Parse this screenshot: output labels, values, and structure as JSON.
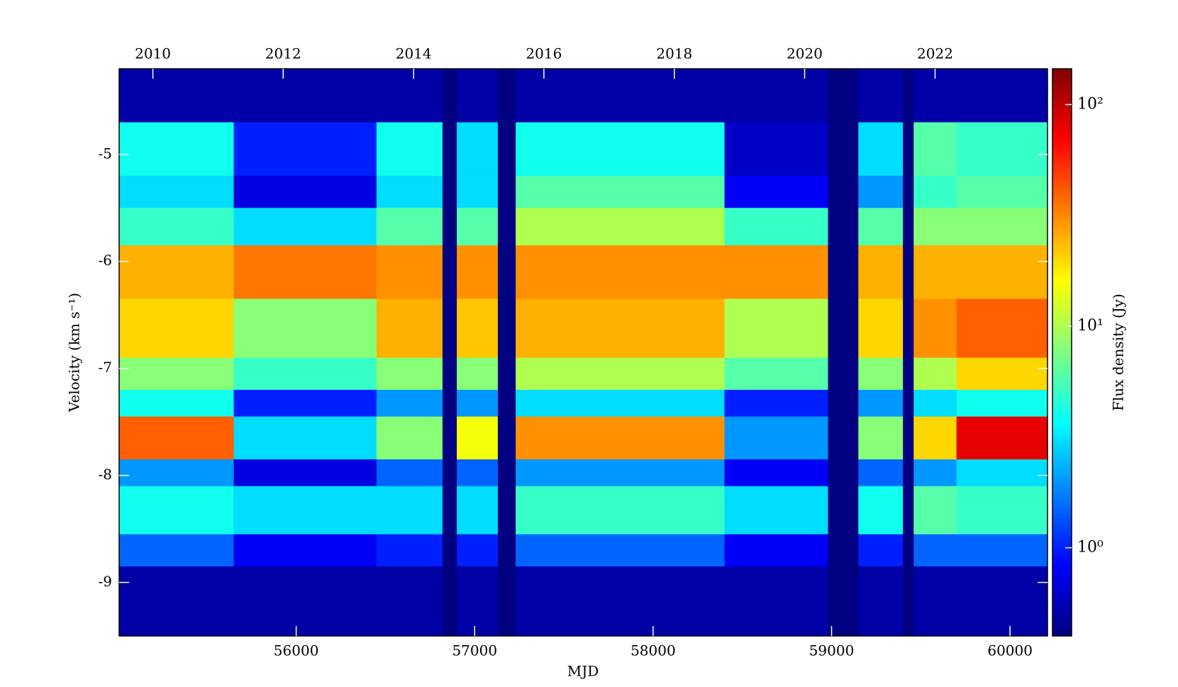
{
  "chart_data": {
    "type": "heatmap",
    "xlabel": "MJD",
    "ylabel": "Velocity (km s⁻¹)",
    "colorbar_label": "Flux density (Jy)",
    "colormap": "jet",
    "color_log": true,
    "x_bins": [
      55008,
      55650,
      56450,
      56820,
      56900,
      57130,
      57230,
      58400,
      58980,
      59150,
      59400,
      59460,
      59700,
      60210
    ],
    "y_bins": [
      -4.2,
      -4.7,
      -5.2,
      -5.5,
      -5.85,
      -6.35,
      -6.9,
      -7.2,
      -7.45,
      -7.85,
      -8.1,
      -8.55,
      -8.85,
      -9.5
    ],
    "values": [
      [
        0.5,
        4,
        3,
        5,
        25,
        20,
        8,
        4,
        40,
        2,
        4,
        1.5,
        0.5
      ],
      [
        0.5,
        1,
        0.7,
        3,
        35,
        8,
        5,
        1,
        3,
        0.7,
        3,
        0.8,
        0.5
      ],
      [
        0.5,
        4,
        3,
        6,
        30,
        25,
        8,
        2,
        8,
        1.5,
        3,
        1,
        0.5
      ],
      [
        0.4,
        0.4,
        0.4,
        0.4,
        0.4,
        0.4,
        0.4,
        0.4,
        0.4,
        0.4,
        0.4,
        0.4,
        0.4
      ],
      [
        0.5,
        3,
        3,
        6,
        30,
        22,
        8,
        2,
        15,
        1.5,
        3,
        1,
        0.5
      ],
      [
        0.4,
        0.4,
        0.4,
        0.4,
        0.4,
        0.4,
        0.4,
        0.4,
        0.4,
        0.4,
        0.4,
        0.4,
        0.4
      ],
      [
        0.5,
        4,
        6,
        10,
        30,
        25,
        10,
        3,
        30,
        2,
        5,
        1.5,
        0.5
      ],
      [
        0.5,
        0.6,
        0.8,
        5,
        30,
        10,
        6,
        1,
        2,
        0.8,
        3,
        0.8,
        0.5
      ],
      [
        0.4,
        0.4,
        0.4,
        0.4,
        0.4,
        0.4,
        0.4,
        0.4,
        0.4,
        0.4,
        0.4,
        0.4,
        0.4
      ],
      [
        0.5,
        3,
        2,
        6,
        25,
        20,
        8,
        2,
        8,
        1.5,
        4,
        1,
        0.5
      ],
      [
        0.4,
        0.4,
        0.4,
        0.4,
        0.4,
        0.4,
        0.4,
        0.4,
        0.4,
        0.4,
        0.4,
        0.4,
        0.4
      ],
      [
        0.5,
        6,
        5,
        8,
        25,
        30,
        10,
        3,
        20,
        2,
        6,
        1.5,
        0.5
      ],
      [
        0.5,
        5,
        6,
        8,
        25,
        40,
        20,
        4,
        80,
        3,
        5,
        1.5,
        0.5
      ]
    ],
    "xlim": [
      55008,
      60210
    ],
    "ylim": [
      -9.5,
      -4.2
    ],
    "xticks": [
      56000,
      57000,
      58000,
      59000,
      60000
    ],
    "x2ticks": [
      {
        "value": 55197,
        "label": "2010"
      },
      {
        "value": 55927,
        "label": "2012"
      },
      {
        "value": 56658,
        "label": "2014"
      },
      {
        "value": 57388,
        "label": "2016"
      },
      {
        "value": 58119,
        "label": "2018"
      },
      {
        "value": 58849,
        "label": "2020"
      },
      {
        "value": 59580,
        "label": "2022"
      }
    ],
    "yticks": [
      -5,
      -6,
      -7,
      -8,
      -9
    ],
    "clim": [
      0.4,
      145
    ],
    "cticks": [
      {
        "value": 1,
        "label": "10⁰"
      },
      {
        "value": 10,
        "label": "10¹"
      },
      {
        "value": 100,
        "label": "10²"
      }
    ]
  }
}
